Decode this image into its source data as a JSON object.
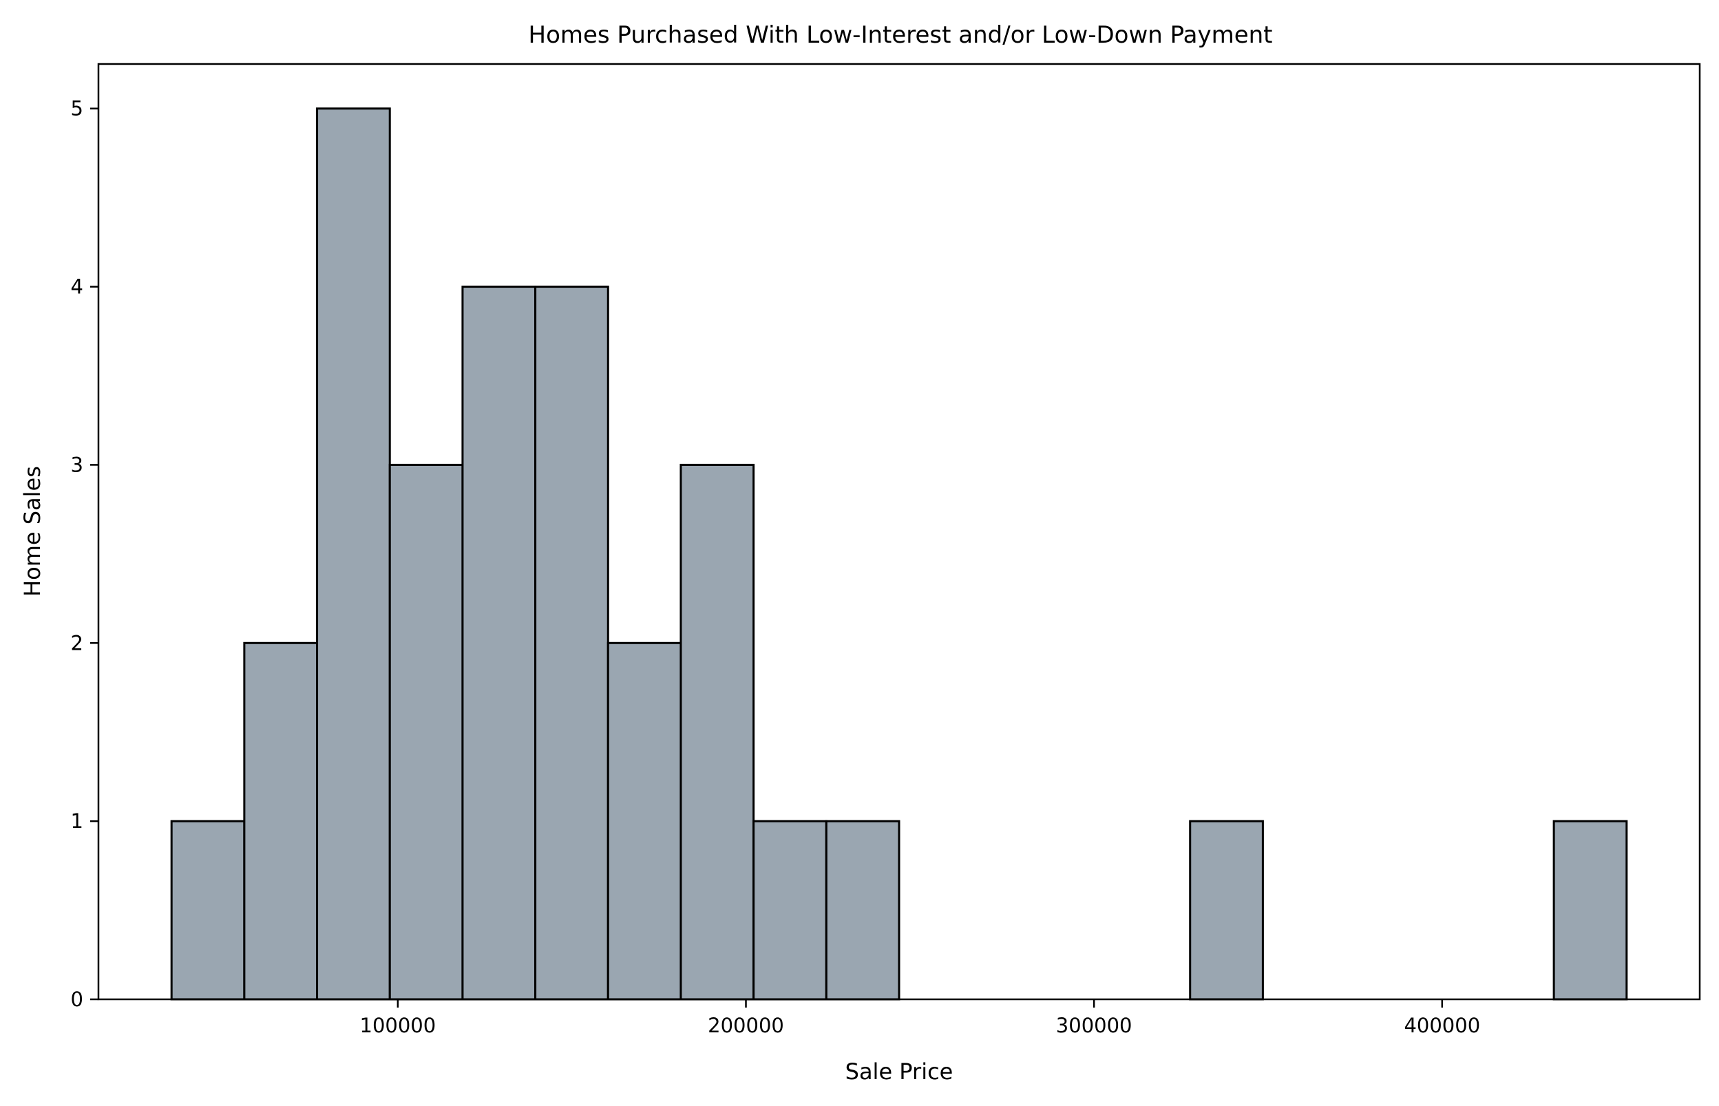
{
  "chart_data": {
    "type": "bar",
    "title": "Homes Purchased With Low-Interest and/or Low-Down Payment",
    "xlabel": "Sale Price",
    "ylabel": "Home Sales",
    "xlim": [
      14000,
      474000
    ],
    "ylim": [
      0,
      5.25
    ],
    "xticks": [
      100000,
      200000,
      300000,
      400000
    ],
    "xtick_labels": [
      "100000",
      "200000",
      "300000",
      "400000"
    ],
    "yticks": [
      0,
      1,
      2,
      3,
      4,
      5
    ],
    "ytick_labels": [
      "0",
      "1",
      "2",
      "3",
      "4",
      "5"
    ],
    "bin_edges": [
      35000,
      55900,
      76800,
      97700,
      118600,
      139500,
      160400,
      181300,
      202200,
      223100,
      244000,
      264900,
      285800,
      306700,
      327600,
      348500,
      369400,
      390300,
      411200,
      432100,
      453000
    ],
    "values": [
      1,
      2,
      5,
      3,
      4,
      4,
      2,
      3,
      1,
      1,
      0,
      0,
      0,
      0,
      1,
      0,
      0,
      0,
      0,
      1
    ],
    "bar_color": "#9aa6b1",
    "edge_color": "#000000",
    "grid": false,
    "legend": "none"
  }
}
